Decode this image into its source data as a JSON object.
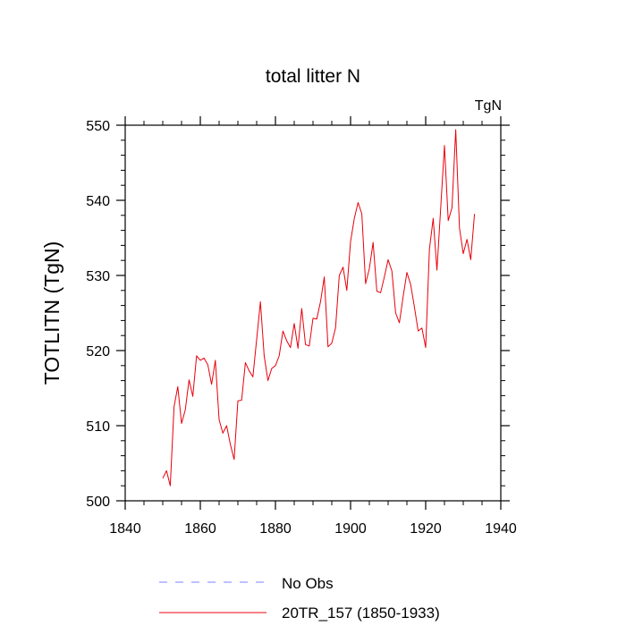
{
  "chart_data": {
    "type": "line",
    "title": "total litter N",
    "units_label": "TgN",
    "ylabel": "TOTLITN  (TgN)",
    "xlabel": "",
    "xlim": [
      1840,
      1940
    ],
    "ylim": [
      500,
      550
    ],
    "x_ticks": [
      1840,
      1860,
      1880,
      1900,
      1920,
      1940
    ],
    "y_ticks": [
      500,
      510,
      520,
      530,
      540,
      550
    ],
    "x_minor_step": 5,
    "y_minor_step": 2,
    "grid": false,
    "legend_position": "bottom",
    "series": [
      {
        "name": "20TR_157 (1850-1933)",
        "color": "#e8000b",
        "style": "solid",
        "x": [
          1850,
          1851,
          1852,
          1853,
          1854,
          1855,
          1856,
          1857,
          1858,
          1859,
          1860,
          1861,
          1862,
          1863,
          1864,
          1865,
          1866,
          1867,
          1868,
          1869,
          1870,
          1871,
          1872,
          1873,
          1874,
          1875,
          1876,
          1877,
          1878,
          1879,
          1880,
          1881,
          1882,
          1883,
          1884,
          1885,
          1886,
          1887,
          1888,
          1889,
          1890,
          1891,
          1892,
          1893,
          1894,
          1895,
          1896,
          1897,
          1898,
          1899,
          1900,
          1901,
          1902,
          1903,
          1904,
          1905,
          1906,
          1907,
          1908,
          1909,
          1910,
          1911,
          1912,
          1913,
          1914,
          1915,
          1916,
          1917,
          1918,
          1919,
          1920,
          1921,
          1922,
          1923,
          1924,
          1925,
          1926,
          1927,
          1928,
          1929,
          1930,
          1931,
          1932,
          1933
        ],
        "values": [
          503.0,
          504.0,
          502.0,
          512.5,
          515.2,
          510.3,
          512.1,
          516.1,
          513.9,
          519.3,
          518.7,
          519.0,
          518.1,
          515.5,
          518.7,
          510.8,
          509.0,
          510.0,
          507.5,
          505.5,
          513.3,
          513.4,
          518.4,
          517.3,
          516.5,
          521.5,
          526.5,
          519.3,
          516.0,
          517.6,
          518.0,
          519.3,
          522.6,
          521.3,
          520.4,
          523.6,
          520.3,
          525.6,
          520.8,
          520.6,
          524.3,
          524.2,
          526.5,
          529.8,
          520.5,
          521.0,
          523.0,
          530.0,
          531.1,
          528.0,
          534.5,
          537.6,
          539.7,
          538.2,
          528.9,
          530.9,
          534.4,
          527.9,
          527.7,
          529.8,
          532.1,
          530.6,
          525.0,
          523.7,
          527.2,
          530.4,
          528.8,
          525.8,
          522.6,
          523.0,
          520.4,
          533.5,
          537.6,
          530.7,
          539.0,
          547.3,
          537.3,
          539.0,
          549.4,
          536.3,
          532.9,
          534.8,
          532.1,
          538.2
        ]
      },
      {
        "name": "No Obs",
        "color": "#8080ff",
        "style": "dashed",
        "x": [],
        "values": []
      }
    ]
  }
}
